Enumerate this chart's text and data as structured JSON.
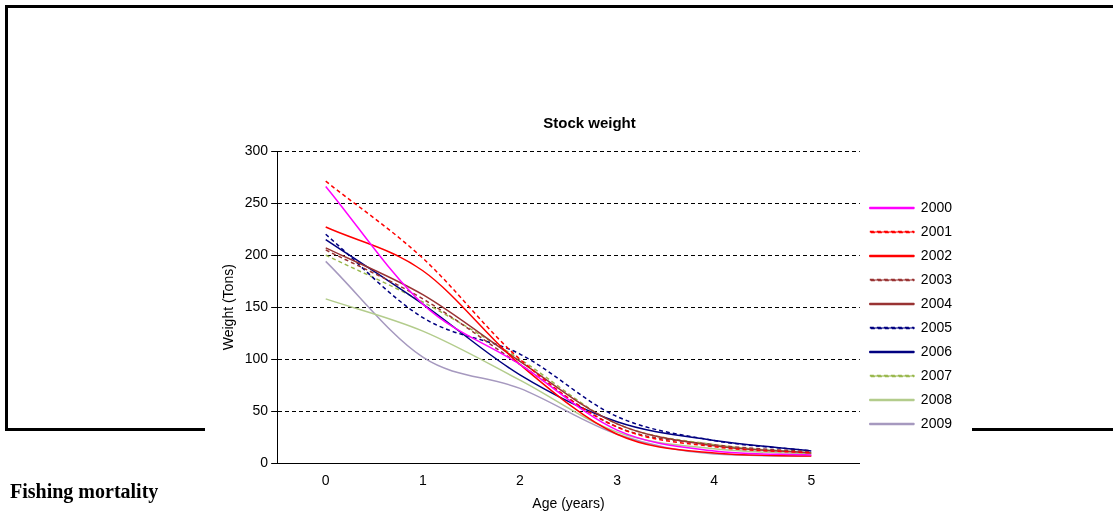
{
  "chart_data": {
    "type": "line",
    "title": "Stock weight",
    "xlabel": "Age (years)",
    "ylabel": "Weight (Tons)",
    "categories": [
      "0",
      "1",
      "2",
      "3",
      "4",
      "5"
    ],
    "series": [
      {
        "name": "2000",
        "color": "#ff00ff",
        "line_style": "solid",
        "values": [
          266,
          153,
          95,
          32,
          12,
          8
        ]
      },
      {
        "name": "2001",
        "color": "#ff0000",
        "line_style": "dashed",
        "values": [
          271,
          197,
          100,
          35,
          16,
          10
        ]
      },
      {
        "name": "2002",
        "color": "#ff0000",
        "line_style": "solid",
        "values": [
          227,
          185,
          95,
          28,
          10,
          7
        ]
      },
      {
        "name": "2003",
        "color": "#993333",
        "line_style": "dashed",
        "values": [
          205,
          158,
          95,
          35,
          18,
          11
        ]
      },
      {
        "name": "2004",
        "color": "#993333",
        "line_style": "solid",
        "values": [
          207,
          162,
          98,
          38,
          17,
          10
        ]
      },
      {
        "name": "2005",
        "color": "#000080",
        "line_style": "dashed",
        "values": [
          220,
          140,
          105,
          45,
          22,
          12
        ]
      },
      {
        "name": "2006",
        "color": "#000080",
        "line_style": "solid",
        "values": [
          215,
          153,
          85,
          40,
          22,
          12
        ]
      },
      {
        "name": "2007",
        "color": "#99b84d",
        "line_style": "dashed",
        "values": [
          200,
          155,
          100,
          38,
          18,
          10
        ]
      },
      {
        "name": "2008",
        "color": "#b3cc8c",
        "line_style": "solid",
        "values": [
          158,
          127,
          80,
          30,
          14,
          9
        ]
      },
      {
        "name": "2009",
        "color": "#a699bf",
        "line_style": "solid",
        "values": [
          194,
          102,
          72,
          28,
          9,
          7
        ]
      }
    ],
    "ylim": [
      0,
      300
    ],
    "yticks": [
      0,
      50,
      100,
      150,
      200,
      250,
      300
    ],
    "grid": "y",
    "legend": "right",
    "marker": "none",
    "annotations": [
      "Fishing mortality"
    ]
  }
}
